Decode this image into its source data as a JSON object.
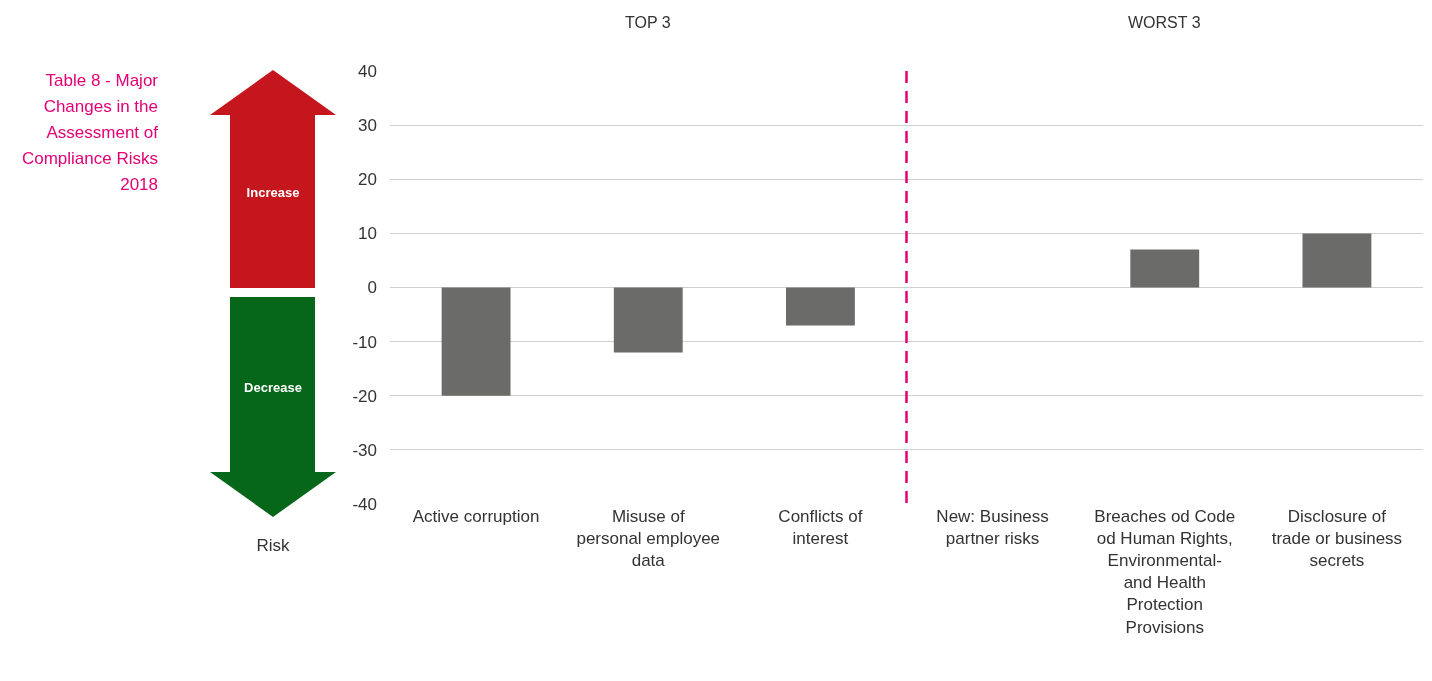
{
  "chart_data": {
    "type": "bar",
    "title": "Table 8 - Major Changes in the Assessment of Compliance Risks 2018",
    "categories": [
      "Active corruption",
      "Misuse of personal employee data",
      "Conflicts of interest",
      "New: Business partner risks",
      "Breaches od Code od Human Rights, Environmental- and Health Protection Provisions",
      "Disclosure of trade or business secrets"
    ],
    "values": [
      -20,
      -12,
      -7,
      0,
      7,
      10
    ],
    "color": "#6b6b69",
    "ylim": [
      -40,
      40
    ],
    "yticks": [
      -40,
      -30,
      -20,
      -10,
      0,
      10,
      20,
      30,
      40
    ],
    "grid": "y",
    "annotations": [
      "TOP 3",
      "WORST 3",
      "Increase",
      "Decrease",
      "Risk"
    ]
  }
}
